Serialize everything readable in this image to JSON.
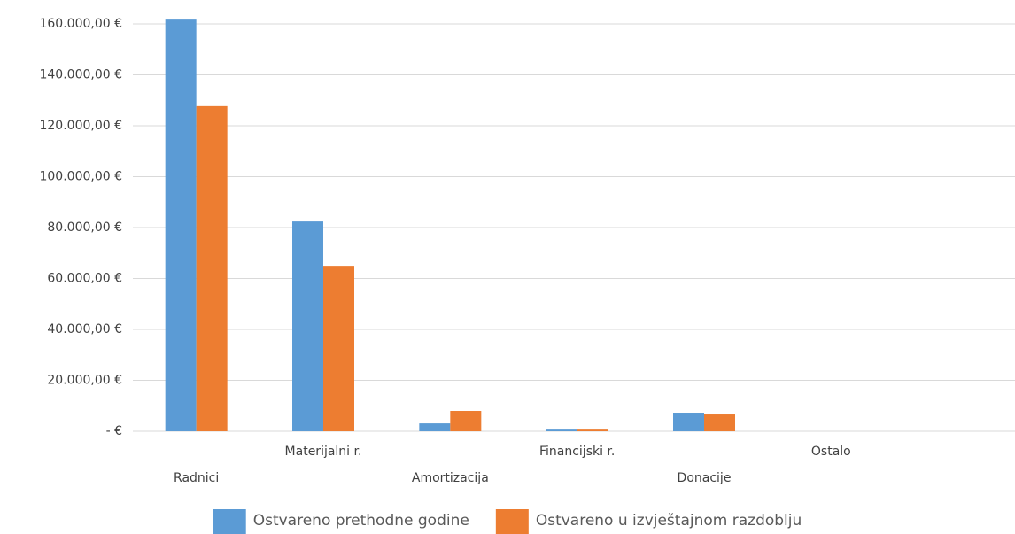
{
  "chart_data": {
    "type": "bar",
    "categories": [
      "Radnici",
      "Materijalni r.",
      "Amortizacija",
      "Financijski r.",
      "Donacije",
      "Ostalo"
    ],
    "series": [
      {
        "name": "Ostvareno prethodne godine",
        "color": "#5b9bd5",
        "values": [
          161700,
          82400,
          3100,
          1000,
          7300,
          0
        ]
      },
      {
        "name": "Ostvareno u izvještajnom razdoblju",
        "color": "#ed7d31",
        "values": [
          127700,
          65000,
          8000,
          1000,
          6600,
          0
        ]
      }
    ],
    "ylim": [
      0,
      160000
    ],
    "yticks": [
      {
        "value": 0,
        "label": "-  €"
      },
      {
        "value": 20000,
        "label": "20.000,00 €"
      },
      {
        "value": 40000,
        "label": "40.000,00 €"
      },
      {
        "value": 60000,
        "label": "60.000,00 €"
      },
      {
        "value": 80000,
        "label": "80.000,00 €"
      },
      {
        "value": 100000,
        "label": "100.000,00 €"
      },
      {
        "value": 120000,
        "label": "120.000,00 €"
      },
      {
        "value": 140000,
        "label": "140.000,00 €"
      },
      {
        "value": 160000,
        "label": "160.000,00 €"
      }
    ],
    "grid": true,
    "legend": "bottom"
  }
}
